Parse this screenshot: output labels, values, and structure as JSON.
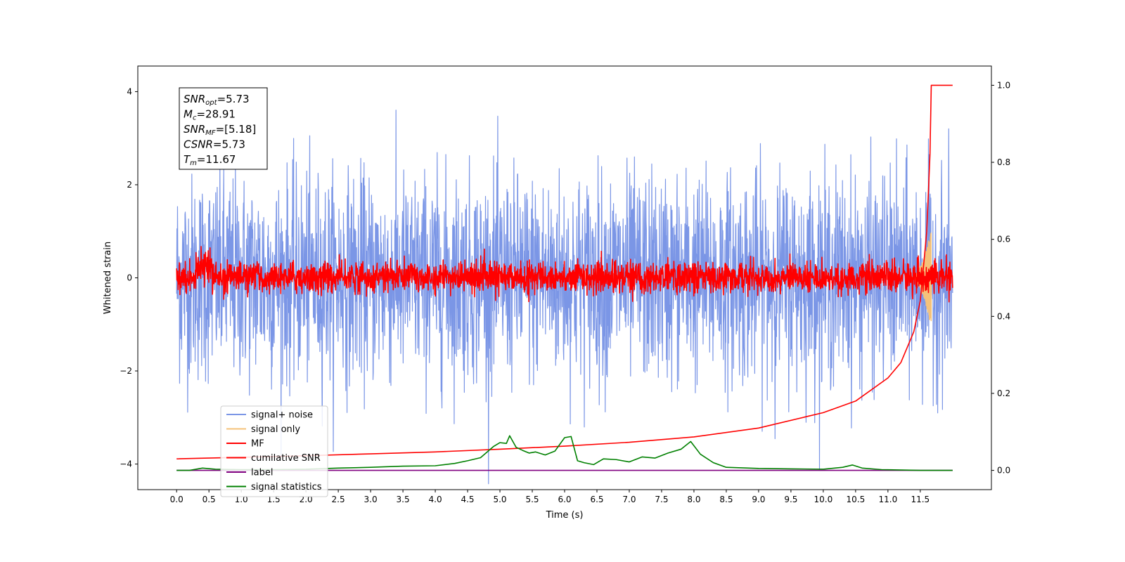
{
  "chart_data": {
    "type": "line",
    "xlabel": "Time (s)",
    "ylabel": "Whitened strain",
    "ylabel_right": "",
    "xlim": [
      -0.6,
      12.6
    ],
    "ylim": [
      -4.55,
      4.55
    ],
    "ylim_right": [
      -0.05,
      1.05
    ],
    "xticks": [
      "0.0",
      "0.5",
      "1.0",
      "1.5",
      "2.0",
      "2.5",
      "3.0",
      "3.5",
      "4.0",
      "4.5",
      "5.0",
      "5.5",
      "6.0",
      "6.5",
      "7.0",
      "7.5",
      "8.0",
      "8.5",
      "9.0",
      "9.5",
      "10.0",
      "10.5",
      "11.0",
      "11.5"
    ],
    "yticks_left": [
      {
        "value": 4,
        "label": "4"
      },
      {
        "value": 2,
        "label": "2"
      },
      {
        "value": 0,
        "label": "0"
      },
      {
        "value": -2,
        "label": "−2"
      },
      {
        "value": -4,
        "label": "−4"
      }
    ],
    "yticks_right": [
      {
        "value": 1.0,
        "label": "1.0"
      },
      {
        "value": 0.8,
        "label": "0.8"
      },
      {
        "value": 0.6,
        "label": "0.6"
      },
      {
        "value": 0.4,
        "label": "0.4"
      },
      {
        "value": 0.2,
        "label": "0.2"
      },
      {
        "value": 0.0,
        "label": "0.0"
      }
    ],
    "grid": false,
    "legend_position": "lower-left",
    "series": [
      {
        "name": "signal+ noise",
        "color": "#7b96e6",
        "axis": "left",
        "kind": "noise",
        "x_range": [
          0,
          12.0
        ],
        "amplitude": 1.1
      },
      {
        "name": "signal only",
        "color": "#f5c27a",
        "axis": "left",
        "kind": "chirp",
        "x_range": [
          11.3,
          11.67
        ],
        "peak": 1.1
      },
      {
        "name": "MF",
        "color": "#ff0000",
        "axis": "left",
        "kind": "noise",
        "x_range": [
          0,
          12.0
        ],
        "amplitude": 0.18
      },
      {
        "name": "cumilative SNR",
        "color": "#ff0000",
        "axis": "right",
        "x": [
          0.0,
          1.0,
          2.0,
          3.0,
          4.0,
          5.0,
          6.0,
          7.0,
          8.0,
          9.0,
          10.0,
          10.5,
          11.0,
          11.2,
          11.4,
          11.5,
          11.6,
          11.65,
          11.67,
          11.75,
          12.0
        ],
        "y": [
          0.03,
          0.034,
          0.038,
          0.043,
          0.048,
          0.055,
          0.063,
          0.073,
          0.087,
          0.11,
          0.15,
          0.18,
          0.24,
          0.28,
          0.36,
          0.44,
          0.62,
          0.82,
          1.0,
          1.0,
          1.0
        ]
      },
      {
        "name": "label",
        "color": "#800080",
        "axis": "right",
        "x": [
          0.0,
          12.0
        ],
        "y": [
          0.0,
          0.0
        ]
      },
      {
        "name": "signal statistics",
        "color": "#008000",
        "axis": "right",
        "x": [
          0.0,
          0.2,
          0.4,
          0.6,
          1.0,
          1.5,
          2.0,
          2.5,
          3.0,
          3.5,
          4.0,
          4.3,
          4.5,
          4.7,
          4.9,
          5.0,
          5.1,
          5.15,
          5.25,
          5.35,
          5.45,
          5.55,
          5.7,
          5.85,
          6.0,
          6.1,
          6.2,
          6.3,
          6.45,
          6.6,
          6.8,
          7.0,
          7.2,
          7.4,
          7.6,
          7.8,
          7.95,
          8.1,
          8.3,
          8.5,
          9.0,
          9.5,
          10.0,
          10.3,
          10.45,
          10.6,
          10.9,
          11.5,
          12.0
        ],
        "y": [
          0.0,
          0.0,
          0.006,
          0.003,
          0.002,
          0.002,
          0.003,
          0.006,
          0.008,
          0.011,
          0.012,
          0.018,
          0.025,
          0.033,
          0.062,
          0.072,
          0.07,
          0.09,
          0.06,
          0.052,
          0.045,
          0.048,
          0.04,
          0.05,
          0.085,
          0.088,
          0.025,
          0.02,
          0.015,
          0.03,
          0.028,
          0.022,
          0.035,
          0.032,
          0.045,
          0.055,
          0.075,
          0.042,
          0.02,
          0.008,
          0.005,
          0.004,
          0.003,
          0.008,
          0.014,
          0.006,
          0.002,
          0.0,
          0.0
        ]
      }
    ]
  },
  "stats": {
    "line1": {
      "base": "SNR",
      "sub": "opt",
      "value": "=5.73"
    },
    "line2": {
      "base": "M",
      "sub": "c",
      "value": "=28.91"
    },
    "line3": {
      "base": "SNR",
      "sub": "MF",
      "value": "=[5.18]"
    },
    "line4": {
      "base": "CSNR",
      "sub": "",
      "value": "=5.73"
    },
    "line5": {
      "base": "T",
      "sub": "m",
      "value": "=11.67"
    }
  }
}
